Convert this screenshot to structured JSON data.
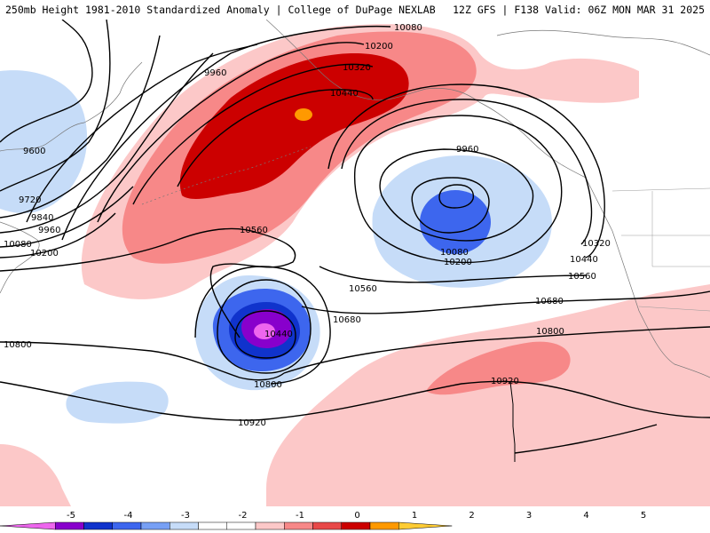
{
  "header": {
    "title_left": "250mb Height 1981-2010 Standardized Anomaly | College of DuPage NEXLAB",
    "title_right": "12Z GFS | F138 Valid: 06Z MON MAR 31 2025"
  },
  "legend": {
    "ticks": [
      "-5",
      "-4",
      "-3",
      "-2",
      "-1",
      "0",
      "1",
      "2",
      "3",
      "4",
      "5"
    ],
    "colors": [
      "#ee66ee",
      "#8800cc",
      "#1033cc",
      "#3d66ee",
      "#77a0f5",
      "#c6dcf8",
      "#ffffff",
      "#ffffff",
      "#fcc8c8",
      "#f78888",
      "#e84848",
      "#cc0000",
      "#ff9900",
      "#ffcc33"
    ]
  },
  "contour_labels": {
    "l1": "10080",
    "l2": "10200",
    "l3": "10320",
    "l4": "10440",
    "l5": "9960",
    "l6": "9600",
    "l7": "9720",
    "l8": "9840",
    "l9": "9960",
    "l10": "10080",
    "l11": "10200",
    "l12": "10560",
    "l13": "9960",
    "l14": "10080",
    "l15": "10200",
    "l16": "10320",
    "l17": "10440",
    "l18": "10560",
    "l19": "10560",
    "l20": "10680",
    "l21": "10680",
    "l22": "10440",
    "l23": "10800",
    "l24": "10800",
    "l25": "10800",
    "l26": "10920",
    "l27": "10920"
  }
}
